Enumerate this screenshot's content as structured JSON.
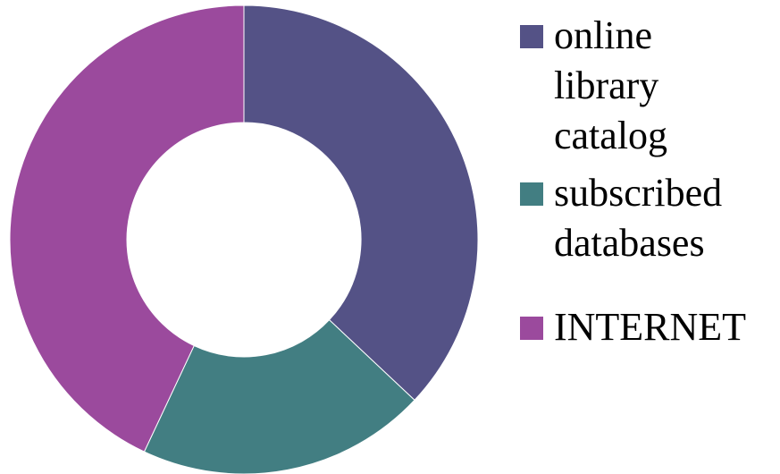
{
  "chart_data": {
    "type": "pie",
    "donut": true,
    "title": "",
    "legend_position": "right",
    "slices": [
      {
        "label": "online library catalog",
        "value": 37,
        "color": "#545286"
      },
      {
        "label": "subscribed databases",
        "value": 20,
        "color": "#427E82"
      },
      {
        "label": "INTERNET",
        "value": 43,
        "color": "#9B4A9D"
      }
    ]
  },
  "legend": {
    "items": [
      {
        "lines": [
          "online",
          "library",
          "catalog"
        ],
        "color": "#545286"
      },
      {
        "lines": [
          "subscribed",
          "databases"
        ],
        "color": "#427E82"
      },
      {
        "lines": [
          "INTERNET"
        ],
        "color": "#9B4A9D"
      }
    ]
  }
}
